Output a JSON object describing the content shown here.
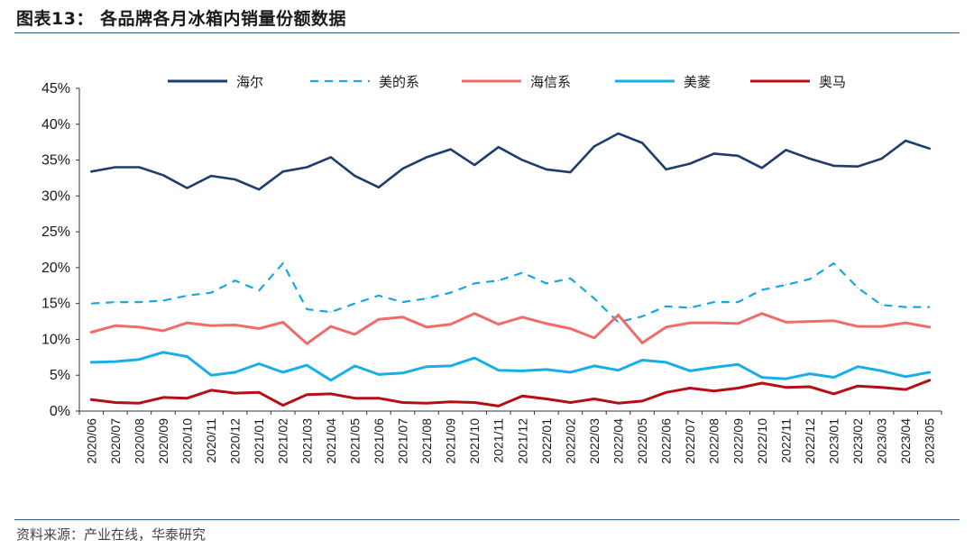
{
  "header": {
    "title": "图表13：  各品牌各月冰箱内销量份额数据"
  },
  "footer": {
    "source": "资料来源：产业在线，华泰研究"
  },
  "chart_data": {
    "type": "line",
    "title": "",
    "xlabel": "",
    "ylabel": "",
    "ylim": [
      0,
      45
    ],
    "y_ticks": [
      "0%",
      "5%",
      "10%",
      "15%",
      "20%",
      "25%",
      "30%",
      "35%",
      "40%",
      "45%"
    ],
    "legend_position": "top",
    "grid": false,
    "categories": [
      "2020/06",
      "2020/07",
      "2020/08",
      "2020/09",
      "2020/10",
      "2020/11",
      "2020/12",
      "2021/01",
      "2021/02",
      "2021/03",
      "2021/04",
      "2021/05",
      "2021/06",
      "2021/07",
      "2021/08",
      "2021/09",
      "2021/10",
      "2021/11",
      "2021/12",
      "2022/01",
      "2022/02",
      "2022/03",
      "2022/04",
      "2022/05",
      "2022/06",
      "2022/07",
      "2022/08",
      "2022/09",
      "2022/10",
      "2022/11",
      "2022/12",
      "2023/01",
      "2023/02",
      "2023/03",
      "2023/04",
      "2023/05"
    ],
    "series": [
      {
        "name": "海尔",
        "color": "#1f3c6e",
        "dash": "solid",
        "values": [
          33.4,
          34.0,
          34.0,
          32.9,
          31.1,
          32.8,
          32.3,
          30.9,
          33.4,
          34.0,
          35.4,
          32.8,
          31.2,
          33.8,
          35.4,
          36.5,
          34.3,
          36.8,
          35.0,
          33.7,
          33.3,
          36.9,
          38.7,
          37.4,
          33.7,
          34.5,
          35.9,
          35.6,
          33.9,
          36.4,
          35.2,
          34.2,
          34.1,
          35.2,
          37.7,
          36.6
        ]
      },
      {
        "name": "美的系",
        "color": "#16a8e0",
        "dash": "dashed",
        "values": [
          15.0,
          15.2,
          15.2,
          15.4,
          16.1,
          16.5,
          18.2,
          16.8,
          20.6,
          14.2,
          13.8,
          15.0,
          16.1,
          15.2,
          15.7,
          16.5,
          17.8,
          18.2,
          19.3,
          17.8,
          18.5,
          15.7,
          12.4,
          13.2,
          14.6,
          14.4,
          15.2,
          15.2,
          16.9,
          17.6,
          18.4,
          20.6,
          17.2,
          14.8,
          14.5,
          14.5
        ]
      },
      {
        "name": "海信系",
        "color": "#f26b6b",
        "dash": "solid",
        "values": [
          11.0,
          11.9,
          11.7,
          11.2,
          12.3,
          11.9,
          12.0,
          11.5,
          12.4,
          9.4,
          11.8,
          10.7,
          12.8,
          13.1,
          11.7,
          12.1,
          13.6,
          12.1,
          13.1,
          12.2,
          11.5,
          10.2,
          13.4,
          9.5,
          11.7,
          12.3,
          12.3,
          12.2,
          13.6,
          12.4,
          12.5,
          12.6,
          11.8,
          11.8,
          12.3,
          11.7
        ]
      },
      {
        "name": "美菱",
        "color": "#18aee6",
        "dash": "solid",
        "values": [
          6.8,
          6.9,
          7.2,
          8.2,
          7.6,
          5.0,
          5.4,
          6.6,
          5.4,
          6.4,
          4.3,
          6.3,
          5.1,
          5.3,
          6.2,
          6.3,
          7.4,
          5.7,
          5.6,
          5.8,
          5.4,
          6.3,
          5.7,
          7.1,
          6.8,
          5.6,
          6.1,
          6.5,
          4.7,
          4.5,
          5.2,
          4.7,
          6.2,
          5.6,
          4.8,
          5.4
        ]
      },
      {
        "name": "奥马",
        "color": "#b40f14",
        "dash": "solid",
        "values": [
          1.6,
          1.2,
          1.1,
          1.9,
          1.8,
          2.9,
          2.5,
          2.6,
          0.8,
          2.3,
          2.4,
          1.8,
          1.8,
          1.2,
          1.1,
          1.3,
          1.2,
          0.7,
          2.1,
          1.7,
          1.2,
          1.7,
          1.1,
          1.4,
          2.6,
          3.2,
          2.8,
          3.2,
          3.9,
          3.3,
          3.4,
          2.4,
          3.5,
          3.3,
          3.0,
          4.3
        ]
      }
    ]
  }
}
